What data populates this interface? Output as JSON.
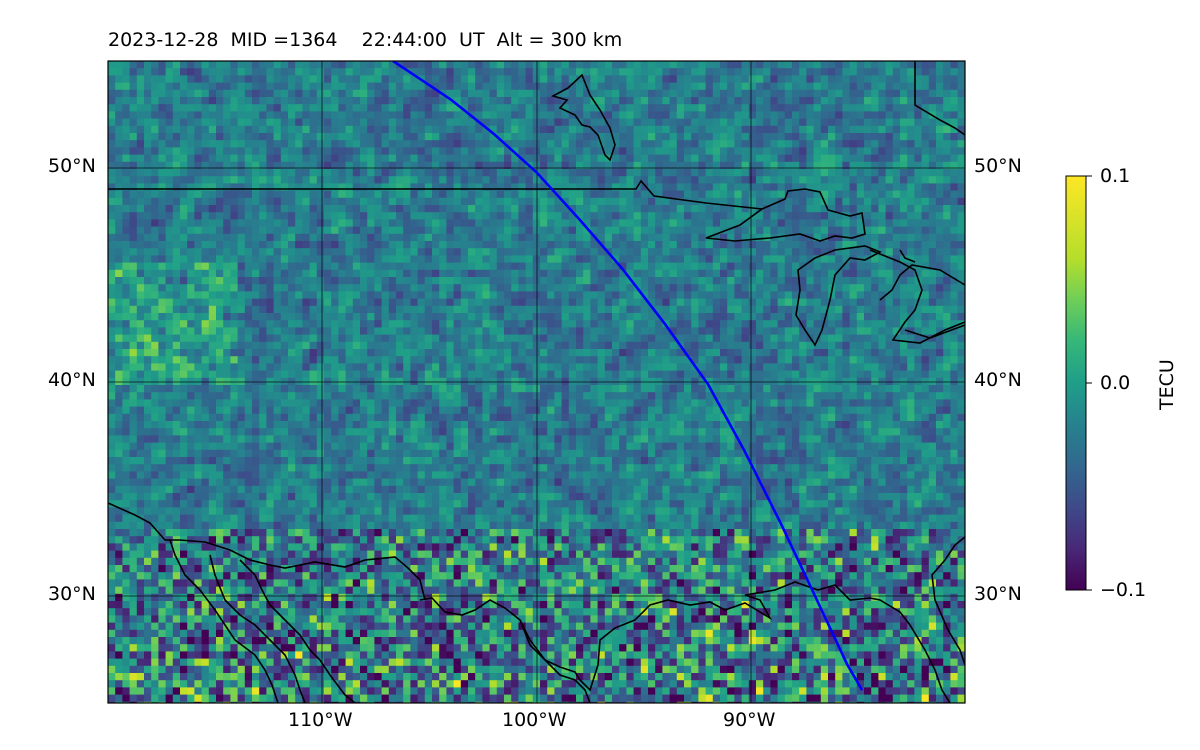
{
  "title": {
    "date": "2023-12-28",
    "mid": "MID =1364",
    "time": "22:44:00  UT",
    "alt": "Alt = 300 km"
  },
  "map": {
    "projection": "PlateCarree",
    "lon_range": [
      -120,
      -80
    ],
    "lat_range": [
      25,
      55
    ],
    "grid_lons": [
      -110,
      -100,
      -90
    ],
    "grid_lats": [
      30,
      40,
      50
    ],
    "lon_labels": [
      "110°W",
      "100°W",
      "90°W"
    ],
    "lat_labels": [
      "30°N",
      "40°N",
      "50°N"
    ],
    "field": "TEC perturbation",
    "field_units": "TECU",
    "colormap": "viridis",
    "track_color": "#0000ff",
    "track_lonlat": [
      [
        -106.7,
        55
      ],
      [
        -105.5,
        54.2
      ],
      [
        -104,
        53.2
      ],
      [
        -102,
        51.6
      ],
      [
        -100,
        49.8
      ],
      [
        -98,
        47.6
      ],
      [
        -96,
        45.3
      ],
      [
        -94,
        42.7
      ],
      [
        -92,
        39.9
      ],
      [
        -90.3,
        36.8
      ],
      [
        -88.6,
        33.4
      ],
      [
        -87,
        30
      ],
      [
        -85.5,
        26.8
      ],
      [
        -84.8,
        25.6
      ]
    ],
    "features": [
      "coastlines",
      "US-Canada border",
      "Great Lakes"
    ]
  },
  "colorbar": {
    "label": "TECU",
    "ticks": [
      "0.1",
      "0.0",
      "−0.1"
    ],
    "vmin": -0.1,
    "vmax": 0.1
  }
}
